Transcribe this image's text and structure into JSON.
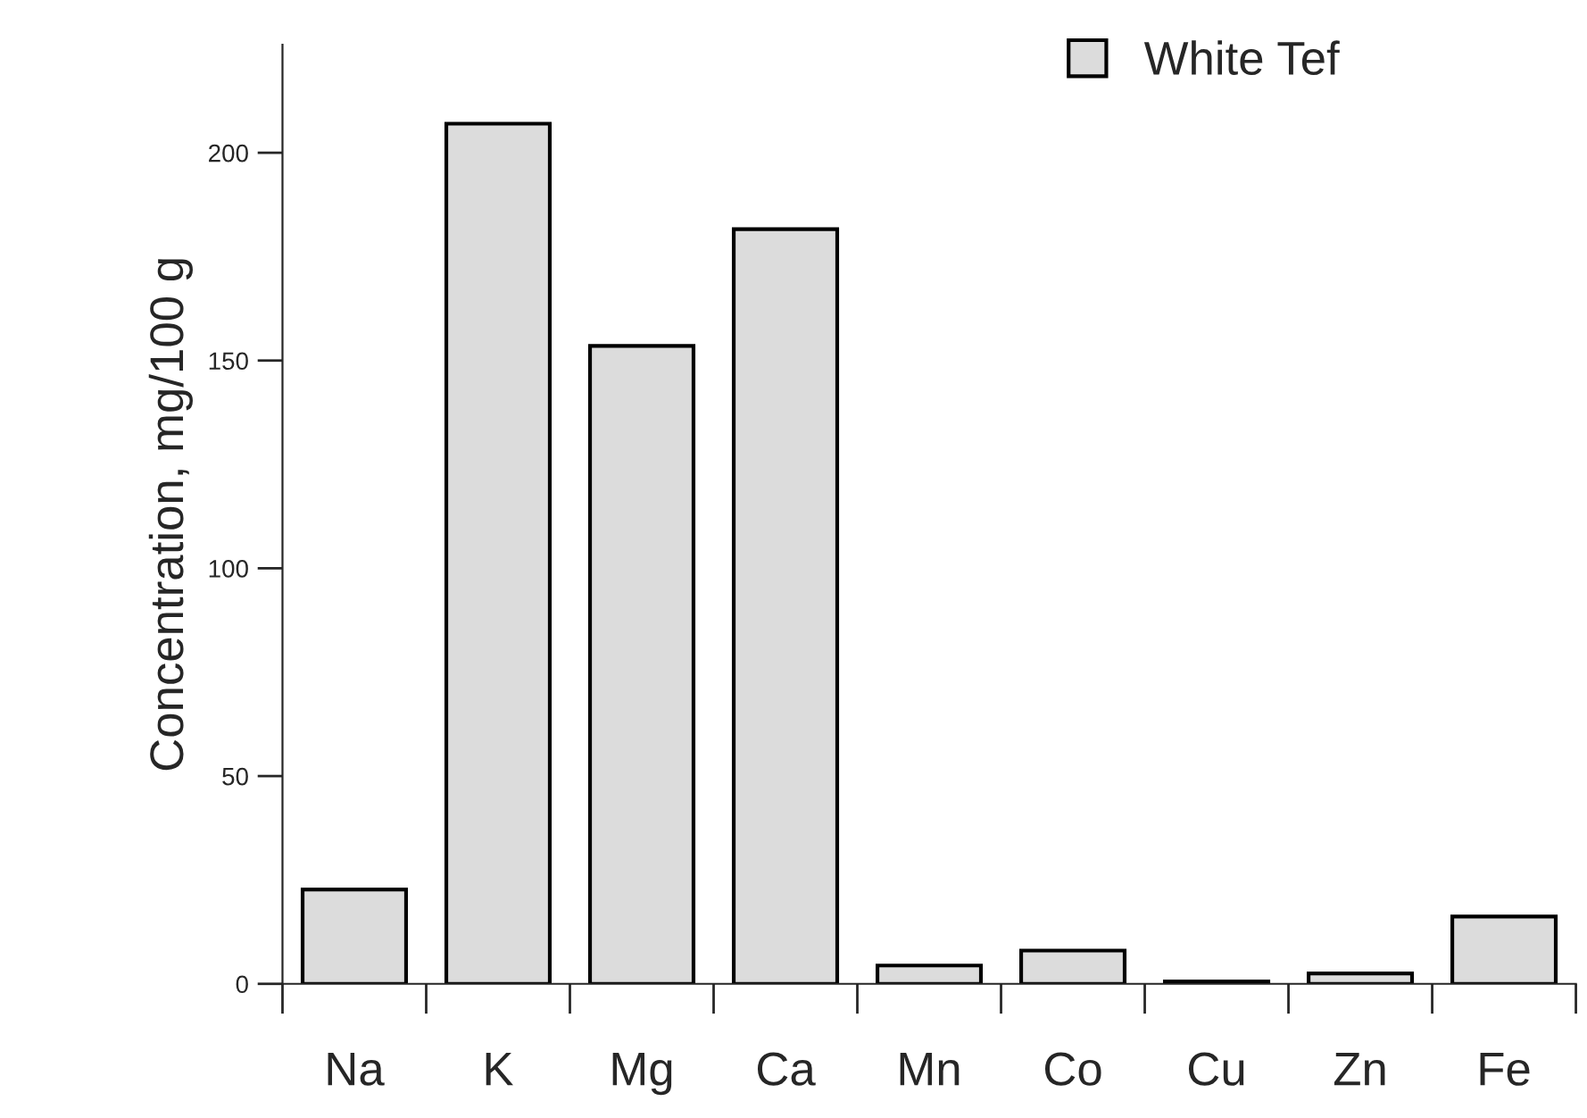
{
  "chart_data": {
    "type": "bar",
    "ylabel": "Concentration, mg/100 g",
    "categories": [
      "Na",
      "K",
      "Mg",
      "Ca",
      "Mn",
      "Co",
      "Cu",
      "Zn",
      "Fe"
    ],
    "series": [
      {
        "name": "White Tef",
        "color": "#dcdcdc",
        "values": [
          22.7,
          207,
          153.5,
          181.6,
          4.4,
          8,
          0.6,
          2.5,
          16.2
        ]
      }
    ],
    "ylim": [
      0,
      226
    ],
    "yticks": [
      0,
      50,
      100,
      150,
      200
    ],
    "grid": false,
    "legend": "top right"
  }
}
